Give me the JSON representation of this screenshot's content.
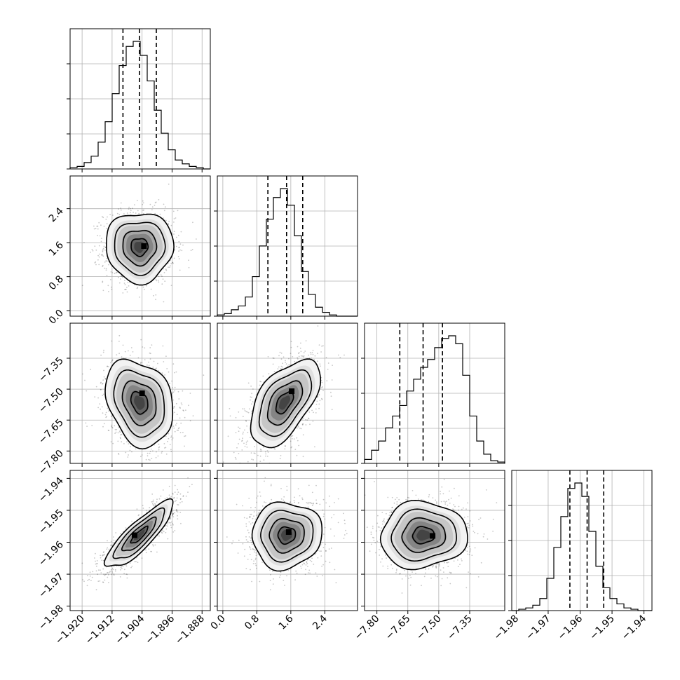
{
  "chart_data": {
    "type": "corner",
    "grid": true,
    "parameters": [
      {
        "id": "p0",
        "range": [
          -1.9232,
          -1.8858
        ],
        "ticks": [
          -1.92,
          -1.912,
          -1.904,
          -1.896,
          -1.888
        ],
        "tick_labels": [
          "−1.920",
          "−1.912",
          "−1.904",
          "−1.896",
          "−1.888"
        ],
        "quantiles": [
          -1.9091,
          -1.9047,
          -1.9002
        ],
        "hist": [
          0.01,
          0.02,
          0.05,
          0.1,
          0.21,
          0.37,
          0.59,
          0.81,
          0.96,
          1.0,
          0.89,
          0.69,
          0.46,
          0.28,
          0.15,
          0.07,
          0.04,
          0.02,
          0.01,
          0.0
        ]
      },
      {
        "id": "p1",
        "range": [
          -0.13,
          3.17
        ],
        "ticks": [
          0.0,
          0.8,
          1.6,
          2.4
        ],
        "tick_labels": [
          "0.0",
          "0.8",
          "1.6",
          "2.4"
        ],
        "quantiles": [
          1.06,
          1.5,
          1.88
        ],
        "hist": [
          0.01,
          0.02,
          0.05,
          0.08,
          0.15,
          0.31,
          0.55,
          0.76,
          0.93,
          1.0,
          0.87,
          0.63,
          0.35,
          0.17,
          0.07,
          0.03,
          0.01,
          0.0,
          0.0,
          0.0
        ]
      },
      {
        "id": "p2",
        "range": [
          -7.86,
          -7.18
        ],
        "ticks": [
          -7.8,
          -7.65,
          -7.5,
          -7.35
        ],
        "tick_labels": [
          "−7.80",
          "−7.65",
          "−7.50",
          "−7.35"
        ],
        "quantiles": [
          -7.689,
          -7.576,
          -7.482
        ],
        "hist": [
          0.03,
          0.1,
          0.17,
          0.27,
          0.36,
          0.44,
          0.55,
          0.64,
          0.73,
          0.79,
          0.88,
          0.95,
          0.97,
          0.91,
          0.67,
          0.36,
          0.17,
          0.07,
          0.02,
          0.01
        ]
      },
      {
        "id": "p3",
        "range": [
          -1.9814,
          -1.9375
        ],
        "ticks": [
          -1.98,
          -1.97,
          -1.96,
          -1.95,
          -1.94
        ],
        "tick_labels": [
          "−1.98",
          "−1.97",
          "−1.96",
          "−1.95",
          "−1.94"
        ],
        "quantiles": [
          -1.9632,
          -1.9578,
          -1.9526
        ],
        "hist": [
          0.0,
          0.01,
          0.02,
          0.04,
          0.09,
          0.24,
          0.47,
          0.7,
          0.91,
          0.95,
          0.85,
          0.59,
          0.33,
          0.17,
          0.09,
          0.05,
          0.02,
          0.01,
          0.0,
          0.0
        ]
      }
    ],
    "pairs": [
      {
        "x": "p0",
        "y": "p1",
        "center": [
          -1.9047,
          1.5
        ],
        "sigma": [
          0.0045,
          0.41
        ],
        "rho": 0.0,
        "peak": [
          -1.9035,
          1.52
        ]
      },
      {
        "x": "p0",
        "y": "p2",
        "center": [
          -1.9047,
          -7.565
        ],
        "sigma": [
          0.0045,
          0.105
        ],
        "rho": -0.25,
        "peak": [
          -1.904,
          -7.52
        ]
      },
      {
        "x": "p1",
        "y": "p2",
        "center": [
          1.45,
          -7.565
        ],
        "sigma": [
          0.41,
          0.105
        ],
        "rho": 0.55,
        "peak": [
          1.62,
          -7.51
        ]
      },
      {
        "x": "p0",
        "y": "p3",
        "center": [
          -1.9047,
          -1.9578
        ],
        "sigma": [
          0.0045,
          0.0052
        ],
        "rho": 0.85,
        "peak": [
          -1.906,
          -1.9578
        ]
      },
      {
        "x": "p1",
        "y": "p3",
        "center": [
          1.5,
          -1.9578
        ],
        "sigma": [
          0.41,
          0.0052
        ],
        "rho": 0.05,
        "peak": [
          1.55,
          -1.9568
        ]
      },
      {
        "x": "p2",
        "y": "p3",
        "center": [
          -7.575,
          -1.9578
        ],
        "sigma": [
          0.105,
          0.0052
        ],
        "rho": 0.05,
        "peak": [
          -7.53,
          -1.958
        ]
      }
    ]
  }
}
